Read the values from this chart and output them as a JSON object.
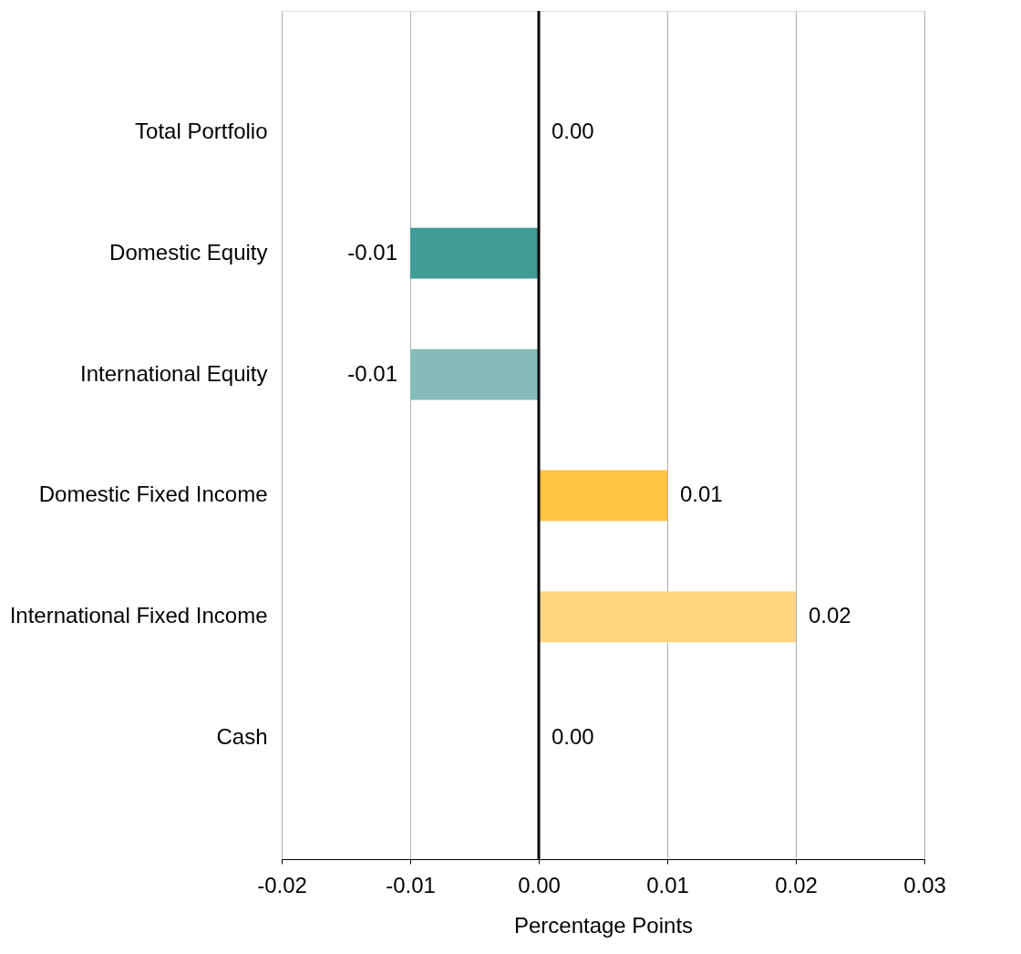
{
  "chart_data": {
    "type": "bar",
    "orientation": "horizontal",
    "xlabel": "Percentage Points",
    "categories": [
      "Total Portfolio",
      "Domestic Equity",
      "International Equity",
      "Domestic Fixed Income",
      "International Fixed Income",
      "Cash"
    ],
    "values": [
      0,
      -0.01,
      -0.01,
      0.01,
      0.02,
      0
    ],
    "colors": [
      "#419b96",
      "#419b96",
      "#84bdb8",
      "#ffc440",
      "#fdd581",
      "#fdd581"
    ],
    "value_labels": [
      "0.00",
      "-0.01",
      "-0.01",
      "0.01",
      "0.02",
      "0.00"
    ],
    "xlim": [
      -0.02,
      0.03
    ],
    "xticks": [
      {
        "value": -0.02,
        "label": "-0.02"
      },
      {
        "value": -0.01,
        "label": "-0.01"
      },
      {
        "value": 0,
        "label": "0.00"
      },
      {
        "value": 0.01,
        "label": "0.01"
      },
      {
        "value": 0.02,
        "label": "0.02"
      },
      {
        "value": 0.03,
        "label": "0.03"
      }
    ],
    "grid": "x",
    "ref_lines": [
      {
        "axis": "x",
        "value": 0,
        "color": "#000000"
      }
    ]
  }
}
